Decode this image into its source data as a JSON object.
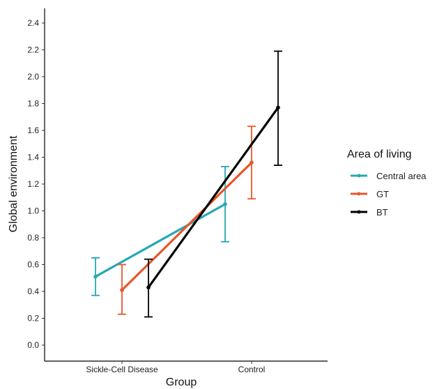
{
  "chart_data": {
    "type": "line",
    "title": "",
    "xlabel": "Group",
    "ylabel": "Global environment",
    "categories": [
      "Sickle-Cell Disease",
      "Control"
    ],
    "ylim": [
      -0.1,
      2.5
    ],
    "yticks": [
      0.0,
      0.2,
      0.4,
      0.6,
      0.8,
      1.0,
      1.2,
      1.4,
      1.6,
      1.8,
      2.0,
      2.2,
      2.4
    ],
    "ytick_labels": [
      "0.0",
      "0.2",
      "0.4",
      "0.6",
      "0.8",
      "1.0",
      "1.2",
      "1.4",
      "1.6",
      "1.8",
      "2.0",
      "2.2",
      "2.4"
    ],
    "grid": false,
    "legend": {
      "title": "Area of living",
      "position": "right"
    },
    "series": [
      {
        "name": "Central area",
        "color": "#25A8B5",
        "values": [
          0.51,
          1.05
        ],
        "lower": [
          0.37,
          0.77
        ],
        "upper": [
          0.65,
          1.33
        ]
      },
      {
        "name": "GT",
        "color": "#E8562A",
        "values": [
          0.41,
          1.36
        ],
        "lower": [
          0.23,
          1.09
        ],
        "upper": [
          0.6,
          1.63
        ]
      },
      {
        "name": "BT",
        "color": "#000000",
        "values": [
          0.43,
          1.77
        ],
        "lower": [
          0.21,
          1.34
        ],
        "upper": [
          0.64,
          2.19
        ]
      }
    ]
  }
}
